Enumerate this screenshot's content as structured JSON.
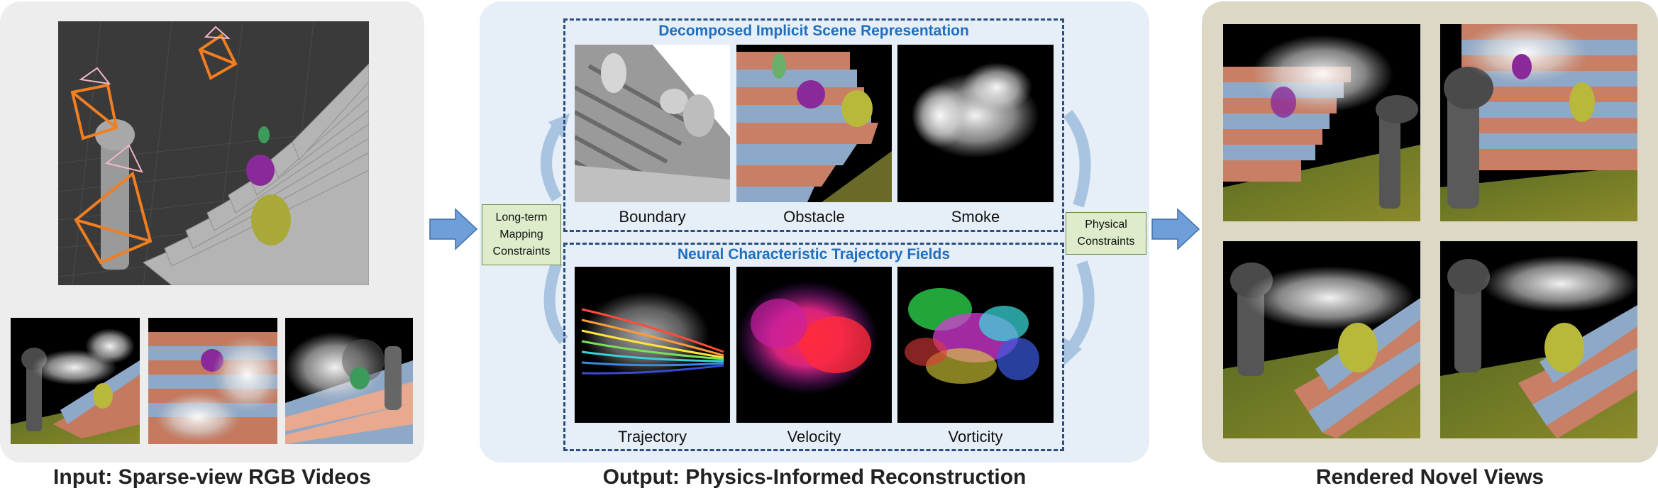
{
  "sections": {
    "input": {
      "caption": "Input: Sparse-view RGB Videos"
    },
    "output": {
      "caption": "Output: Physics-Informed Reconstruction",
      "scene_box_title": "Decomposed Implicit Scene Representation",
      "trajectory_box_title": "Neural Characteristic Trajectory Fields",
      "scene_items": [
        "Boundary",
        "Obstacle",
        "Smoke"
      ],
      "trajectory_items": [
        "Trajectory",
        "Velocity",
        "Vorticity"
      ],
      "left_constraint": [
        "Long-term",
        "Mapping",
        "Constraints"
      ],
      "right_constraint": [
        "Physical",
        "Constraints"
      ]
    },
    "rendered": {
      "caption": "Rendered Novel Views"
    }
  },
  "colors": {
    "input_panel": "#ededed",
    "output_panel": "#e6eef7",
    "rendered_panel": "#ddd8c6",
    "arrow_fill": "#6f9fd8",
    "constraint_fill": "#dfeccb",
    "dashed_border": "#2a4f7f",
    "box_title": "#1f6fbf",
    "camera_orange": "#f07f22",
    "camera_pink": "#f3b6c8"
  },
  "icons": [
    "camera-frustum-icon",
    "right-arrow-icon",
    "curved-arrow-icon"
  ]
}
